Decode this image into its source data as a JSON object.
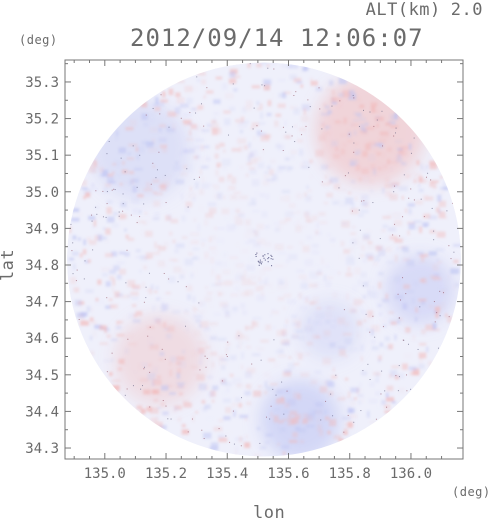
{
  "header": {
    "altitude_label": "ALT(km)",
    "altitude_value": "2.0",
    "timestamp": "2012/09/14 12:06:07"
  },
  "axes": {
    "x_label": "lon",
    "y_label": "lat",
    "x_unit": "(deg)",
    "y_unit": "(deg)"
  },
  "chart_data": {
    "type": "heatmap",
    "x_ticks": [
      "135.0",
      "135.2",
      "135.4",
      "135.6",
      "135.8",
      "136.0"
    ],
    "y_ticks": [
      "35.3",
      "35.2",
      "35.1",
      "35.0",
      "34.9",
      "34.8",
      "34.7",
      "34.6",
      "34.5",
      "34.4",
      "34.3"
    ],
    "xlim": [
      134.87,
      136.17
    ],
    "ylim": [
      34.27,
      35.36
    ],
    "radar_center": {
      "lon": 135.52,
      "lat": 34.815
    },
    "colors": {
      "positive": "#f2b8b8",
      "negative": "#bcc2f2",
      "background": "#eff0fb",
      "axis": "#777777"
    }
  }
}
